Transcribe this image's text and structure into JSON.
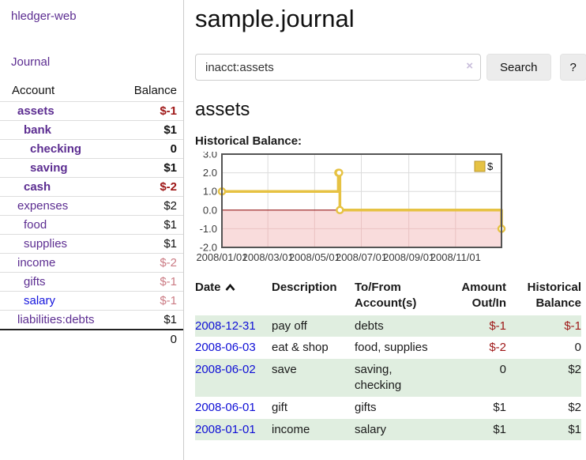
{
  "app": {
    "brand": "hledger-web"
  },
  "sidebar": {
    "journal_link": "Journal",
    "accounts": {
      "col_account": "Account",
      "col_balance": "Balance",
      "rows": [
        {
          "name": "assets",
          "balance": "$-1"
        },
        {
          "name": "bank",
          "balance": "$1"
        },
        {
          "name": "checking",
          "balance": "0"
        },
        {
          "name": "saving",
          "balance": "$1"
        },
        {
          "name": "cash",
          "balance": "$-2"
        },
        {
          "name": "expenses",
          "balance": "$2"
        },
        {
          "name": "food",
          "balance": "$1"
        },
        {
          "name": "supplies",
          "balance": "$1"
        },
        {
          "name": "income",
          "balance": "$-2"
        },
        {
          "name": "gifts",
          "balance": "$-1"
        },
        {
          "name": "salary",
          "balance": "$-1"
        },
        {
          "name": "liabilities:debts",
          "balance": "$1"
        }
      ],
      "total": "0"
    }
  },
  "header": {
    "title": "sample.journal"
  },
  "search": {
    "value": "inacct:assets",
    "clear": "×",
    "submit": "Search",
    "help": "?"
  },
  "account_page": {
    "heading": "assets",
    "chart_label": "Historical Balance:"
  },
  "chart_data": {
    "type": "line",
    "title": "Historical Balance",
    "step": true,
    "legend": "$",
    "legend_position": "top-right",
    "grid": true,
    "xlim": [
      "2008-01-01",
      "2008-12-31"
    ],
    "ylim": [
      -2,
      3
    ],
    "yticks": [
      "3.0",
      "2.0",
      "1.0",
      "0.0",
      "-1.0",
      "-2.0"
    ],
    "xticks": [
      "2008/01/01",
      "2008/03/01",
      "2008/05/01",
      "2008/07/01",
      "2008/09/01",
      "2008/11/01"
    ],
    "series": [
      {
        "name": "$",
        "color": "#e6c243",
        "points": [
          {
            "date": "2008-01-01",
            "value": 1
          },
          {
            "date": "2008-06-01",
            "value": 2
          },
          {
            "date": "2008-06-02",
            "value": 2
          },
          {
            "date": "2008-06-03",
            "value": 0
          },
          {
            "date": "2008-12-31",
            "value": -1
          }
        ]
      }
    ],
    "negative_region_color": "#f9dcdc",
    "zero_line_color": "#941616"
  },
  "register": {
    "headers": {
      "date": "Date",
      "description": "Description",
      "accounts": "To/From Account(s)",
      "amount": "Amount Out/In",
      "balance": "Historical Balance"
    },
    "rows": [
      {
        "date": "2008-12-31",
        "description": "pay off",
        "accounts": "debts",
        "amount": "$-1",
        "balance": "$-1"
      },
      {
        "date": "2008-06-03",
        "description": "eat & shop",
        "accounts": "food, supplies",
        "amount": "$-2",
        "balance": "0"
      },
      {
        "date": "2008-06-02",
        "description": "save",
        "accounts": "saving, checking",
        "amount": "0",
        "balance": "$2"
      },
      {
        "date": "2008-06-01",
        "description": "gift",
        "accounts": "gifts",
        "amount": "$1",
        "balance": "$2"
      },
      {
        "date": "2008-01-01",
        "description": "income",
        "accounts": "salary",
        "amount": "$1",
        "balance": "$1"
      }
    ]
  },
  "colors": {
    "link_purple": "#5c2d91",
    "link_blue": "#1414dd",
    "date_blue": "#0f0fd6",
    "negative_strong": "#9e1616",
    "negative_soft": "#cb7b84",
    "row_green": "#e0eee0",
    "series_gold": "#e6c243"
  }
}
